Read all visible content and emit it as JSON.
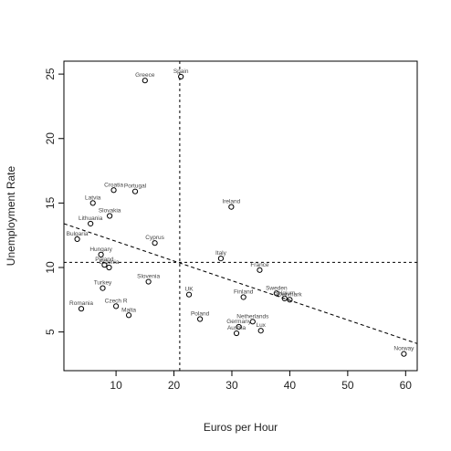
{
  "chart_data": {
    "type": "scatter",
    "xlabel": "Euros per Hour",
    "ylabel": "Unemployment Rate",
    "xlim": [
      1,
      62
    ],
    "ylim": [
      2,
      26
    ],
    "x_ticks": [
      10,
      20,
      30,
      40,
      50,
      60
    ],
    "y_ticks": [
      5,
      10,
      15,
      20,
      25
    ],
    "grid": false,
    "colors": {
      "points": "#000000",
      "lines": "#000000",
      "text": "#444444"
    },
    "points": [
      {
        "label": "Spain",
        "x": 21.2,
        "y": 24.8
      },
      {
        "label": "Greece",
        "x": 15.0,
        "y": 24.5
      },
      {
        "label": "Croatia",
        "x": 9.6,
        "y": 16.0
      },
      {
        "label": "Portugal",
        "x": 13.3,
        "y": 15.9
      },
      {
        "label": "Latvia",
        "x": 6.0,
        "y": 15.0
      },
      {
        "label": "Slovakia",
        "x": 8.9,
        "y": 14.0
      },
      {
        "label": "Lithuania",
        "x": 5.6,
        "y": 13.4
      },
      {
        "label": "Bulgaria",
        "x": 3.3,
        "y": 12.2
      },
      {
        "label": "Cyprus",
        "x": 16.7,
        "y": 11.9
      },
      {
        "label": "Ireland",
        "x": 29.9,
        "y": 14.7
      },
      {
        "label": "Italy",
        "x": 28.1,
        "y": 10.7
      },
      {
        "label": "Hungary",
        "x": 7.4,
        "y": 11.0
      },
      {
        "label": "Poland",
        "x": 8.0,
        "y": 10.2
      },
      {
        "label": "Estonia",
        "x": 8.8,
        "y": 10.0
      },
      {
        "label": "Slovenia",
        "x": 15.6,
        "y": 8.9
      },
      {
        "label": "France",
        "x": 34.8,
        "y": 9.8
      },
      {
        "label": "Sweden",
        "x": 37.7,
        "y": 8.0
      },
      {
        "label": "Denmark",
        "x": 40.0,
        "y": 7.5
      },
      {
        "label": "Belgium",
        "x": 39.1,
        "y": 7.6
      },
      {
        "label": "Finland",
        "x": 32.0,
        "y": 7.7
      },
      {
        "label": "UK",
        "x": 22.6,
        "y": 7.9
      },
      {
        "label": "Turkey",
        "x": 7.7,
        "y": 8.4
      },
      {
        "label": "Czech R",
        "x": 10.0,
        "y": 7.0
      },
      {
        "label": "Romania",
        "x": 4.0,
        "y": 6.8
      },
      {
        "label": "Malta",
        "x": 12.2,
        "y": 6.3
      },
      {
        "label": "Poland",
        "x": 24.5,
        "y": 6.0
      },
      {
        "label": "Netherlands",
        "x": 33.6,
        "y": 5.8
      },
      {
        "label": "Germany",
        "x": 31.2,
        "y": 5.4
      },
      {
        "label": "Austria",
        "x": 30.8,
        "y": 4.9
      },
      {
        "label": "Lux",
        "x": 35.0,
        "y": 5.1
      },
      {
        "label": "Norway",
        "x": 59.7,
        "y": 3.3
      }
    ],
    "vline_x": 21.0,
    "hline_y": 10.4,
    "regression": {
      "x": [
        1,
        62
      ],
      "y": [
        13.4,
        4.1
      ]
    }
  }
}
